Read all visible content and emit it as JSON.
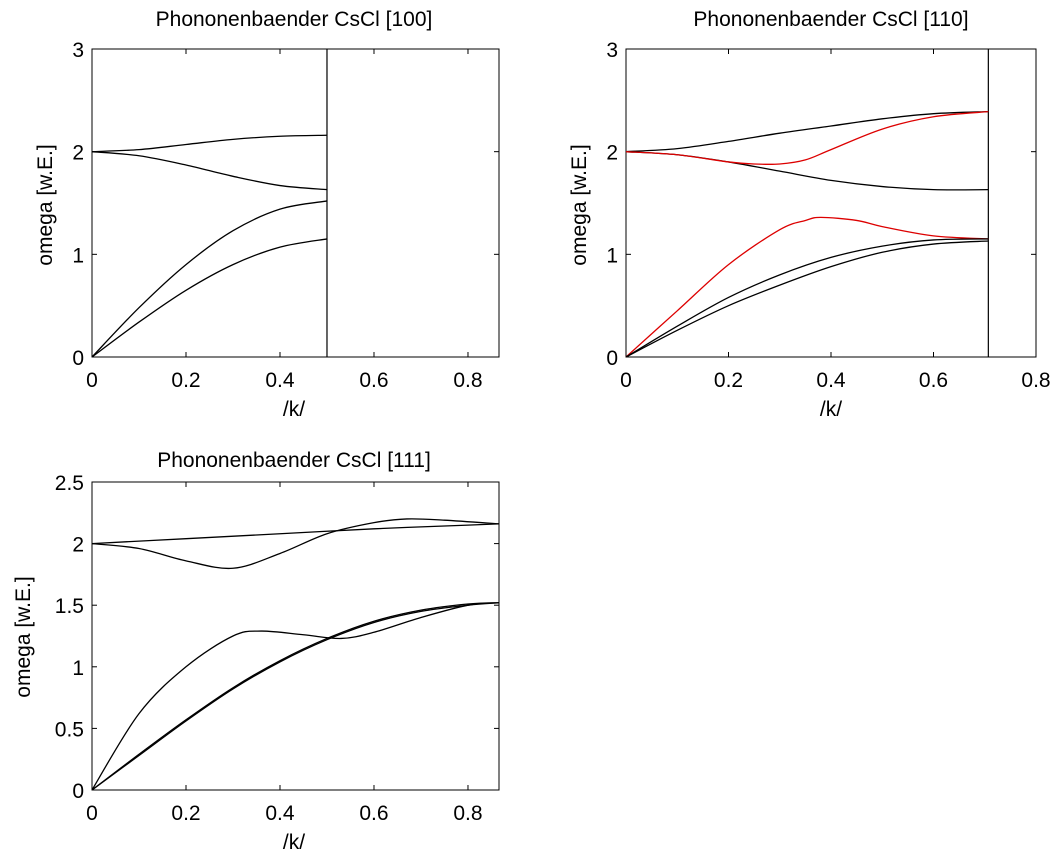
{
  "chart_data": [
    {
      "type": "line",
      "title": "Phononenbaender CsCl [100]",
      "xlabel": "/k/",
      "ylabel": "omega [w.E.]",
      "xlim": [
        0,
        0.866
      ],
      "ylim": [
        0,
        3
      ],
      "xticks": [
        "0",
        "0.2",
        "0.4",
        "0.6",
        "0.8"
      ],
      "xtick_values": [
        0,
        0.2,
        0.4,
        0.6,
        0.8
      ],
      "yticks": [
        "0",
        "1",
        "2",
        "3"
      ],
      "ytick_values": [
        0,
        1,
        2,
        3
      ],
      "grid": false,
      "vertical_marker_x": 0.5,
      "series": [
        {
          "color": "#000000",
          "x": [
            0,
            0.1,
            0.2,
            0.3,
            0.4,
            0.5
          ],
          "y": [
            2.0,
            2.02,
            2.07,
            2.12,
            2.15,
            2.16
          ]
        },
        {
          "color": "#000000",
          "x": [
            0,
            0.1,
            0.2,
            0.3,
            0.4,
            0.5
          ],
          "y": [
            2.0,
            1.96,
            1.87,
            1.76,
            1.67,
            1.63
          ]
        },
        {
          "color": "#000000",
          "x": [
            0,
            0.1,
            0.2,
            0.3,
            0.4,
            0.5
          ],
          "y": [
            0,
            0.48,
            0.9,
            1.23,
            1.44,
            1.52
          ]
        },
        {
          "color": "#000000",
          "x": [
            0,
            0.1,
            0.2,
            0.3,
            0.4,
            0.5
          ],
          "y": [
            0,
            0.34,
            0.65,
            0.9,
            1.07,
            1.15
          ]
        }
      ]
    },
    {
      "type": "line",
      "title": "Phononenbaender CsCl [110]",
      "xlabel": "/k/",
      "ylabel": "omega [w.E.]",
      "xlim": [
        0,
        0.8
      ],
      "ylim": [
        0,
        3
      ],
      "xticks": [
        "0",
        "0.2",
        "0.4",
        "0.6",
        "0.8"
      ],
      "xtick_values": [
        0,
        0.2,
        0.4,
        0.6,
        0.8
      ],
      "yticks": [
        "0",
        "1",
        "2",
        "3"
      ],
      "ytick_values": [
        0,
        1,
        2,
        3
      ],
      "grid": false,
      "vertical_marker_x": 0.707,
      "series": [
        {
          "color": "#000000",
          "x": [
            0,
            0.1,
            0.2,
            0.3,
            0.4,
            0.5,
            0.6,
            0.707
          ],
          "y": [
            2.0,
            2.03,
            2.1,
            2.18,
            2.25,
            2.32,
            2.37,
            2.39
          ]
        },
        {
          "color": "#000000",
          "x": [
            0,
            0.1,
            0.2,
            0.3,
            0.4,
            0.5,
            0.6,
            0.707
          ],
          "y": [
            2.0,
            1.97,
            1.9,
            1.81,
            1.72,
            1.66,
            1.63,
            1.63
          ]
        },
        {
          "color": "#dd0000",
          "x": [
            0,
            0.1,
            0.2,
            0.25,
            0.3,
            0.35,
            0.4,
            0.5,
            0.6,
            0.707
          ],
          "y": [
            2.0,
            1.97,
            1.9,
            1.88,
            1.88,
            1.92,
            2.02,
            2.22,
            2.34,
            2.39
          ]
        },
        {
          "color": "#dd0000",
          "x": [
            0,
            0.1,
            0.2,
            0.3,
            0.35,
            0.38,
            0.45,
            0.5,
            0.6,
            0.707
          ],
          "y": [
            0,
            0.45,
            0.9,
            1.24,
            1.33,
            1.36,
            1.33,
            1.27,
            1.18,
            1.15
          ]
        },
        {
          "color": "#000000",
          "x": [
            0,
            0.1,
            0.2,
            0.3,
            0.4,
            0.5,
            0.6,
            0.707
          ],
          "y": [
            0,
            0.3,
            0.58,
            0.8,
            0.97,
            1.08,
            1.14,
            1.15
          ]
        },
        {
          "color": "#000000",
          "x": [
            0,
            0.1,
            0.2,
            0.3,
            0.4,
            0.5,
            0.6,
            0.707
          ],
          "y": [
            0,
            0.26,
            0.5,
            0.7,
            0.88,
            1.02,
            1.1,
            1.13
          ]
        }
      ]
    },
    {
      "type": "line",
      "title": "Phononenbaender CsCl [111]",
      "xlabel": "/k/",
      "ylabel": "omega [w.E.]",
      "xlim": [
        0,
        0.866
      ],
      "ylim": [
        0,
        2.5
      ],
      "xticks": [
        "0",
        "0.2",
        "0.4",
        "0.6",
        "0.8"
      ],
      "xtick_values": [
        0,
        0.2,
        0.4,
        0.6,
        0.8
      ],
      "yticks": [
        "0",
        "0.5",
        "1",
        "1.5",
        "2",
        "2.5"
      ],
      "ytick_values": [
        0,
        0.5,
        1,
        1.5,
        2,
        2.5
      ],
      "grid": false,
      "series": [
        {
          "color": "#000000",
          "x": [
            0,
            0.2,
            0.4,
            0.6,
            0.8,
            0.866
          ],
          "y": [
            2.0,
            2.04,
            2.08,
            2.12,
            2.15,
            2.16
          ]
        },
        {
          "color": "#000000",
          "x": [
            0,
            0.1,
            0.2,
            0.3,
            0.4,
            0.5,
            0.6,
            0.67,
            0.75,
            0.866
          ],
          "y": [
            2.0,
            1.96,
            1.86,
            1.8,
            1.92,
            2.08,
            2.17,
            2.2,
            2.19,
            2.16
          ]
        },
        {
          "color": "#000000",
          "x": [
            0,
            0.1,
            0.2,
            0.3,
            0.36,
            0.45,
            0.53,
            0.6,
            0.7,
            0.8,
            0.866
          ],
          "y": [
            0,
            0.62,
            1.0,
            1.25,
            1.29,
            1.26,
            1.23,
            1.28,
            1.4,
            1.5,
            1.52
          ]
        },
        {
          "color": "#000000",
          "x": [
            0,
            0.1,
            0.2,
            0.3,
            0.4,
            0.5,
            0.6,
            0.7,
            0.8,
            0.866
          ],
          "y": [
            0,
            0.28,
            0.56,
            0.82,
            1.04,
            1.22,
            1.36,
            1.45,
            1.5,
            1.52
          ]
        },
        {
          "color": "#000000",
          "x": [
            0,
            0.1,
            0.2,
            0.3,
            0.4,
            0.5,
            0.6,
            0.7,
            0.8,
            0.866
          ],
          "y": [
            0,
            0.29,
            0.57,
            0.83,
            1.05,
            1.23,
            1.37,
            1.46,
            1.51,
            1.52
          ]
        }
      ]
    }
  ]
}
